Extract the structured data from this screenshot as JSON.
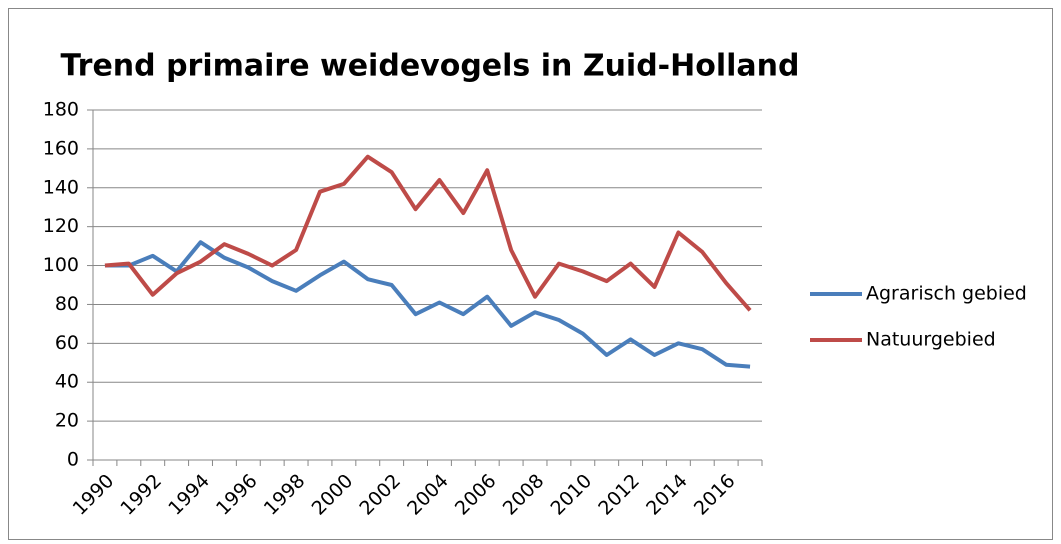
{
  "chart_data": {
    "type": "line",
    "title": "Trend primaire weidevogels in Zuid-Holland",
    "categories": [
      "1990",
      null,
      "1992",
      null,
      "1994",
      null,
      "1996",
      null,
      "1998",
      null,
      "2000",
      null,
      "2002",
      null,
      "2004",
      null,
      "2006",
      null,
      "2008",
      null,
      "2010",
      null,
      "2012",
      null,
      "2014",
      null,
      "2016",
      null
    ],
    "series": [
      {
        "name": "Agrarisch gebied",
        "color": "#4a7ebb",
        "values": [
          100,
          100,
          105,
          97,
          112,
          104,
          99,
          92,
          87,
          95,
          102,
          93,
          90,
          75,
          81,
          75,
          84,
          69,
          76,
          72,
          65,
          54,
          62,
          54,
          60,
          57,
          49,
          48
        ]
      },
      {
        "name": "Natuurgebied",
        "color": "#be4b48",
        "values": [
          100,
          101,
          85,
          96,
          102,
          111,
          106,
          100,
          108,
          138,
          142,
          156,
          148,
          129,
          144,
          127,
          149,
          108,
          84,
          101,
          97,
          92,
          101,
          89,
          117,
          107,
          91,
          77
        ]
      }
    ],
    "ylim": [
      0,
      180
    ],
    "yticks": [
      0,
      20,
      40,
      60,
      80,
      100,
      120,
      140,
      160,
      180
    ],
    "grid": true,
    "legend": "right"
  }
}
